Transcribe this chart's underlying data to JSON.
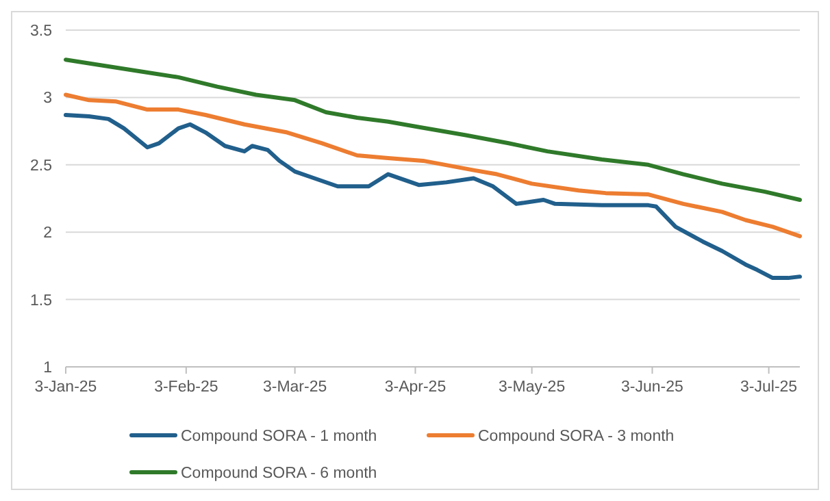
{
  "chart_data": {
    "type": "line",
    "xlim": [
      "2025-01-03",
      "2025-07-11"
    ],
    "xticks": [
      {
        "value": "2025-01-03",
        "label": "3-Jan-25"
      },
      {
        "value": "2025-02-03",
        "label": "3-Feb-25"
      },
      {
        "value": "2025-03-03",
        "label": "3-Mar-25"
      },
      {
        "value": "2025-04-03",
        "label": "3-Apr-25"
      },
      {
        "value": "2025-05-03",
        "label": "3-May-25"
      },
      {
        "value": "2025-06-03",
        "label": "3-Jun-25"
      },
      {
        "value": "2025-07-03",
        "label": "3-Jul-25"
      }
    ],
    "ylim": [
      1,
      3.5
    ],
    "yticks": [
      1,
      1.5,
      2,
      2.5,
      3,
      3.5
    ],
    "grid": "y",
    "legend": "bottom",
    "line_style": "solid",
    "series": [
      {
        "name": "Compound SORA - 1 month",
        "color": "#215f8c",
        "x": [
          "2025-01-03",
          "2025-01-09",
          "2025-01-14",
          "2025-01-18",
          "2025-01-24",
          "2025-01-27",
          "2025-02-01",
          "2025-02-04",
          "2025-02-08",
          "2025-02-13",
          "2025-02-18",
          "2025-02-20",
          "2025-02-24",
          "2025-02-27",
          "2025-03-03",
          "2025-03-07",
          "2025-03-14",
          "2025-03-22",
          "2025-03-27",
          "2025-04-04",
          "2025-04-11",
          "2025-04-18",
          "2025-04-23",
          "2025-04-29",
          "2025-05-06",
          "2025-05-09",
          "2025-05-21",
          "2025-06-02",
          "2025-06-04",
          "2025-06-09",
          "2025-06-16",
          "2025-06-21",
          "2025-06-27",
          "2025-06-30",
          "2025-07-04",
          "2025-07-08",
          "2025-07-11"
        ],
        "values": [
          2.87,
          2.86,
          2.84,
          2.77,
          2.63,
          2.66,
          2.77,
          2.8,
          2.74,
          2.64,
          2.6,
          2.64,
          2.61,
          2.53,
          2.45,
          2.41,
          2.34,
          2.34,
          2.43,
          2.35,
          2.37,
          2.4,
          2.34,
          2.21,
          2.24,
          2.21,
          2.2,
          2.2,
          2.19,
          2.04,
          1.93,
          1.86,
          1.76,
          1.72,
          1.66,
          1.66,
          1.67
        ]
      },
      {
        "name": "Compound SORA - 3 month",
        "color": "#ed7d31",
        "x": [
          "2025-01-03",
          "2025-01-09",
          "2025-01-16",
          "2025-01-24",
          "2025-02-01",
          "2025-02-08",
          "2025-02-18",
          "2025-03-01",
          "2025-03-10",
          "2025-03-19",
          "2025-03-27",
          "2025-04-05",
          "2025-04-18",
          "2025-04-24",
          "2025-05-03",
          "2025-05-15",
          "2025-05-22",
          "2025-06-02",
          "2025-06-11",
          "2025-06-21",
          "2025-06-27",
          "2025-07-04",
          "2025-07-11"
        ],
        "values": [
          3.02,
          2.98,
          2.97,
          2.91,
          2.91,
          2.87,
          2.8,
          2.74,
          2.66,
          2.57,
          2.55,
          2.53,
          2.46,
          2.43,
          2.36,
          2.31,
          2.29,
          2.28,
          2.21,
          2.15,
          2.09,
          2.04,
          1.97
        ]
      },
      {
        "name": "Compound SORA - 6 month",
        "color": "#2f7a2a",
        "x": [
          "2025-01-03",
          "2025-01-12",
          "2025-01-23",
          "2025-02-01",
          "2025-02-11",
          "2025-02-21",
          "2025-03-03",
          "2025-03-11",
          "2025-03-19",
          "2025-03-27",
          "2025-04-04",
          "2025-04-16",
          "2025-04-27",
          "2025-05-07",
          "2025-05-21",
          "2025-06-02",
          "2025-06-11",
          "2025-06-21",
          "2025-07-02",
          "2025-07-11"
        ],
        "values": [
          3.28,
          3.24,
          3.19,
          3.15,
          3.08,
          3.02,
          2.98,
          2.89,
          2.85,
          2.82,
          2.78,
          2.72,
          2.66,
          2.6,
          2.54,
          2.5,
          2.43,
          2.36,
          2.3,
          2.24
        ]
      }
    ]
  }
}
